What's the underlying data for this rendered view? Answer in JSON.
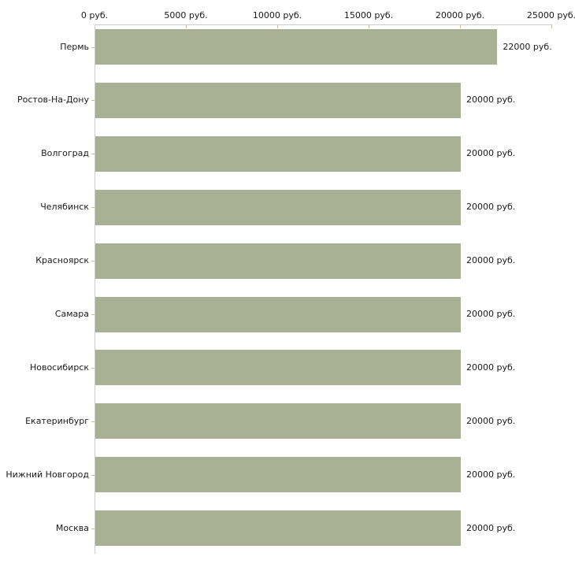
{
  "page": {
    "background": "#ffffff"
  },
  "chart_data": {
    "type": "bar",
    "orientation": "horizontal",
    "title": "",
    "categories": [
      "Пермь",
      "Ростов-На-Дону",
      "Волгоград",
      "Челябинск",
      "Красноярск",
      "Самара",
      "Новосибирск",
      "Екатеринбург",
      "Нижний Новгород",
      "Москва"
    ],
    "values": [
      22000,
      20000,
      20000,
      20000,
      20000,
      20000,
      20000,
      20000,
      20000,
      20000
    ],
    "value_labels": [
      "22000 руб.",
      "20000 руб.",
      "20000 руб.",
      "20000 руб.",
      "20000 руб.",
      "20000 руб.",
      "20000 руб.",
      "20000 руб.",
      "20000 руб.",
      "20000 руб."
    ],
    "xlabel": "",
    "ylabel": "",
    "unit": "руб.",
    "x_axis": {
      "position": "top",
      "min": 0,
      "max": 25000,
      "ticks": [
        0,
        5000,
        10000,
        15000,
        20000,
        25000
      ],
      "tick_labels": [
        "0 руб.",
        "5000 руб.",
        "10000 руб.",
        "15000 руб.",
        "20000 руб.",
        "25000 руб."
      ]
    },
    "grid": false,
    "legend": false,
    "colors": {
      "bar_fill": "#a9b194",
      "axis_line": "#cccccc",
      "tick_mark": "#c0c09a",
      "text": "#1a1a1a",
      "background": "#ffffff"
    }
  }
}
